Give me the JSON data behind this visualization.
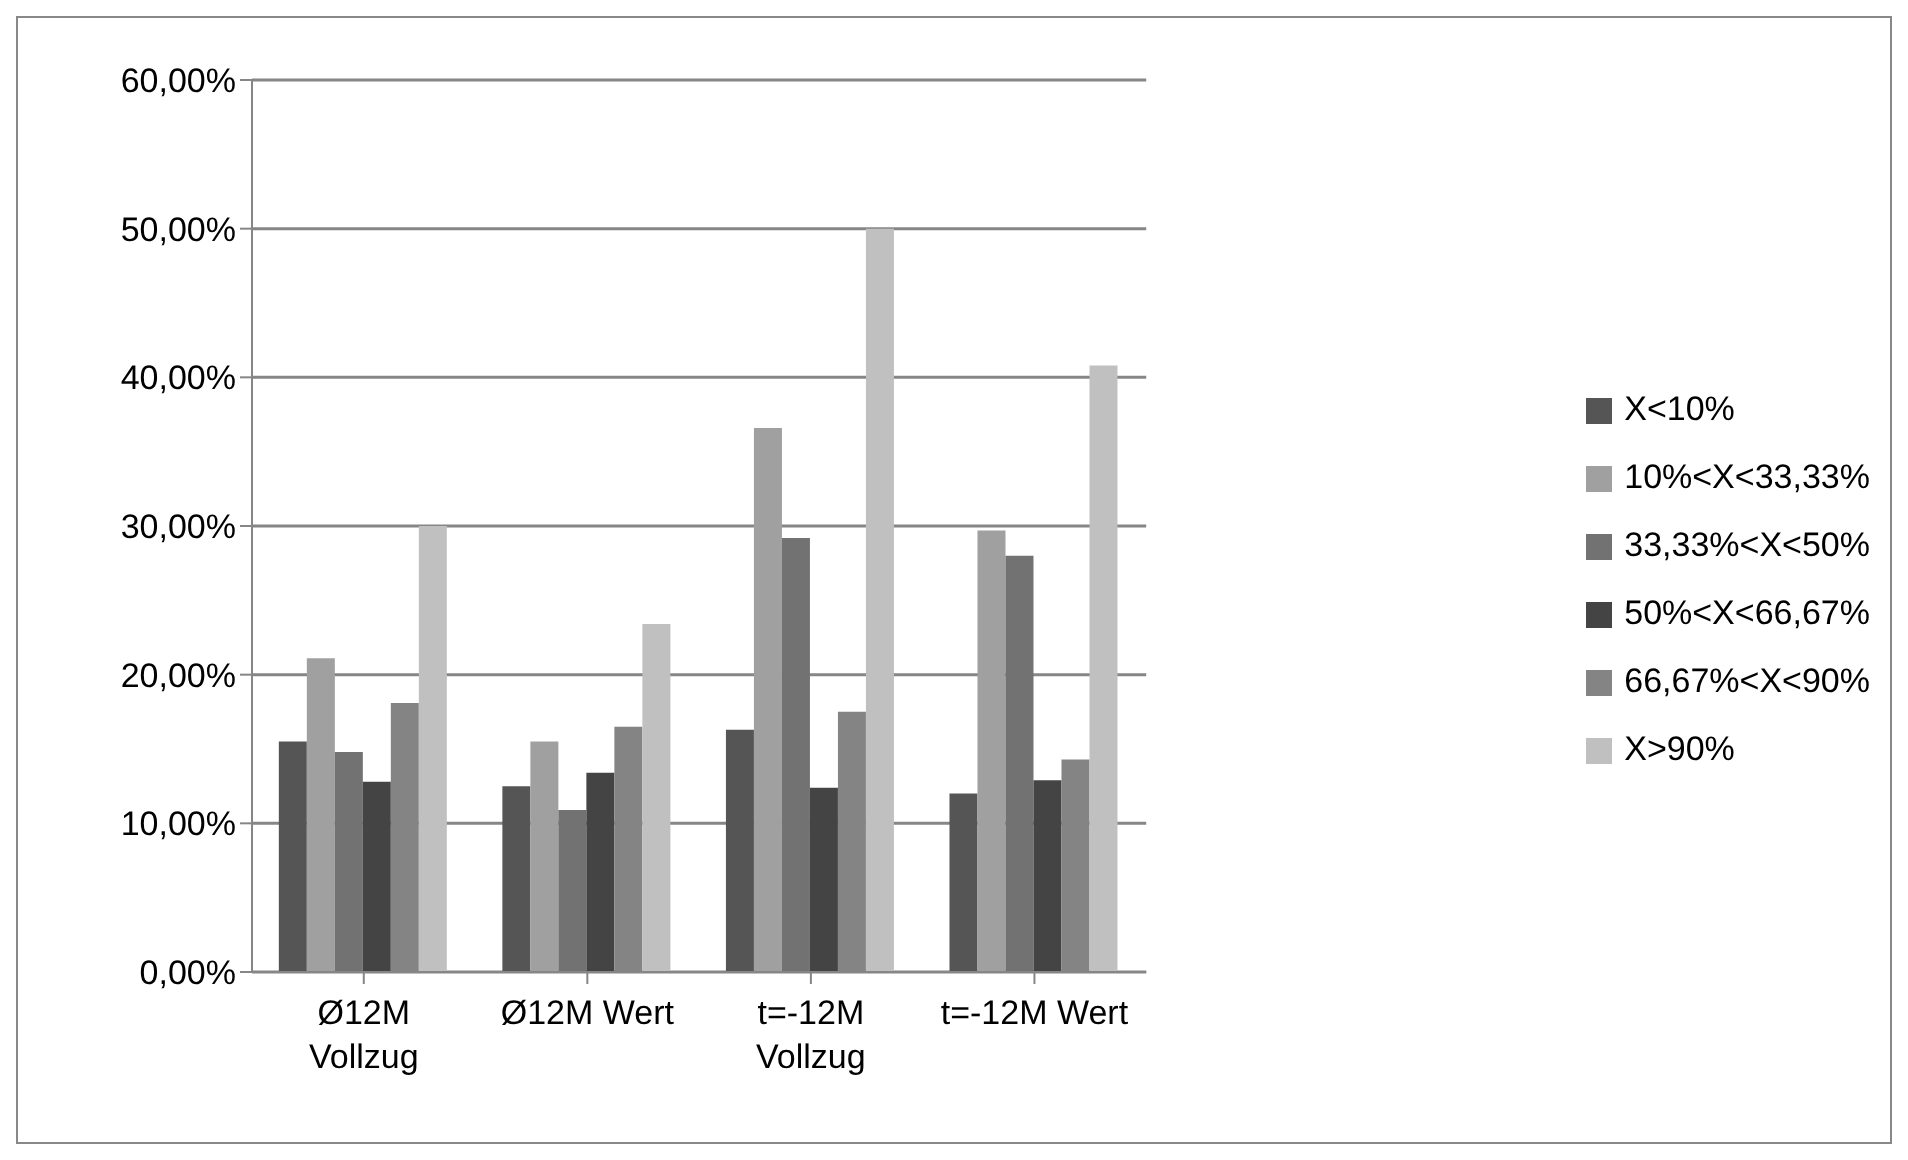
{
  "chart_data": {
    "type": "bar",
    "categories": [
      "Ø12M Vollzug",
      "Ø12M Wert",
      "t=-12M Vollzug",
      "t=-12M Wert"
    ],
    "series": [
      {
        "name": "X<10%",
        "color": "#555555",
        "values": [
          15.5,
          12.5,
          16.3,
          12.0
        ]
      },
      {
        "name": "10%<X<33,33%",
        "color": "#a0a0a0",
        "values": [
          21.1,
          15.5,
          36.6,
          29.7
        ]
      },
      {
        "name": "33,33%<X<50%",
        "color": "#727272",
        "values": [
          14.8,
          10.9,
          29.2,
          28.0
        ]
      },
      {
        "name": "50%<X<66,67%",
        "color": "#444444",
        "values": [
          12.8,
          13.4,
          12.4,
          12.9
        ]
      },
      {
        "name": "66,67%<X<90%",
        "color": "#848484",
        "values": [
          18.1,
          16.5,
          17.5,
          14.3
        ]
      },
      {
        "name": "X>90%",
        "color": "#c0c0c0",
        "values": [
          30.0,
          23.4,
          50.0,
          40.8
        ]
      }
    ],
    "ylim": [
      0,
      60
    ],
    "yticks": [
      {
        "value": 0,
        "label": "0,00%"
      },
      {
        "value": 10,
        "label": "10,00%"
      },
      {
        "value": 20,
        "label": "20,00%"
      },
      {
        "value": 30,
        "label": "30,00%"
      },
      {
        "value": 40,
        "label": "40,00%"
      },
      {
        "value": 50,
        "label": "50,00%"
      },
      {
        "value": 60,
        "label": "60,00%"
      }
    ],
    "grid": "y",
    "legend": "right"
  }
}
